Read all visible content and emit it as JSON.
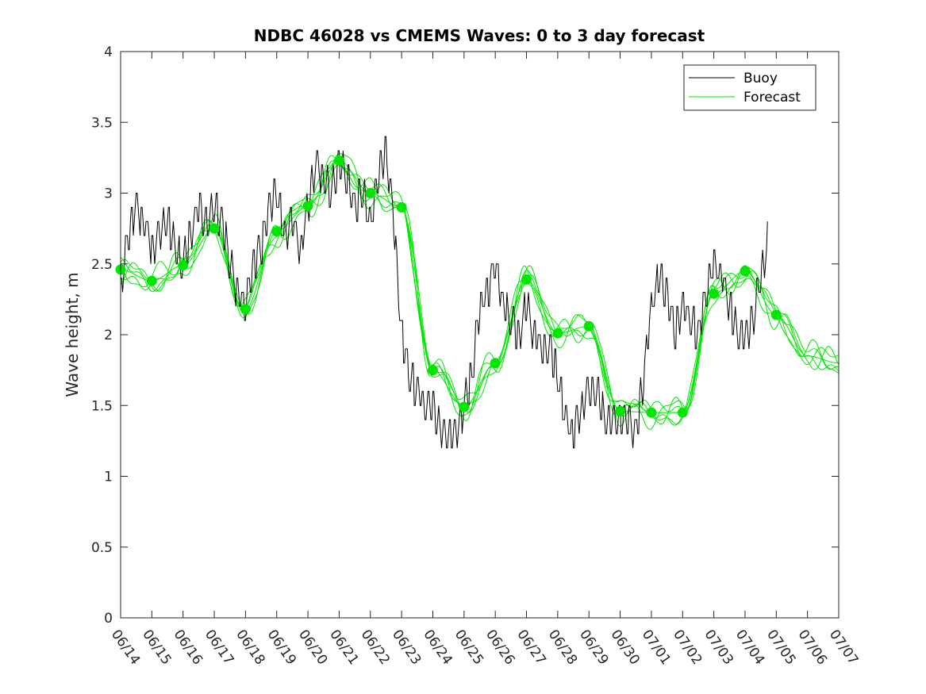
{
  "chart_data": {
    "type": "line",
    "title": "NDBC 46028 vs CMEMS Waves: 0 to 3 day forecast",
    "xlabel": "",
    "ylabel": "Wave height, m",
    "xlim": [
      0,
      23
    ],
    "ylim": [
      0,
      4
    ],
    "x_tick_labels": [
      "06/14",
      "06/15",
      "06/16",
      "06/17",
      "06/18",
      "06/19",
      "06/20",
      "06/21",
      "06/22",
      "06/23",
      "06/24",
      "06/25",
      "06/26",
      "06/27",
      "06/28",
      "06/29",
      "06/30",
      "07/01",
      "07/02",
      "07/03",
      "07/04",
      "07/05",
      "07/06",
      "07/07"
    ],
    "y_ticks": [
      0,
      0.5,
      1,
      1.5,
      2,
      2.5,
      3,
      3.5,
      4
    ],
    "y_tick_labels": [
      "0",
      "0.5",
      "1",
      "1.5",
      "2",
      "2.5",
      "3",
      "3.5",
      "4"
    ],
    "legend": {
      "placement": "top-right",
      "entries": [
        {
          "label": "Buoy",
          "color": "#000000"
        },
        {
          "label": "Forecast",
          "color": "#00e600"
        }
      ]
    },
    "grid": false,
    "series": [
      {
        "name": "Buoy",
        "color": "#000000",
        "x_days_from_0614": [
          0,
          0.25,
          0.5,
          0.75,
          1,
          1.25,
          1.5,
          1.75,
          2,
          2.25,
          2.5,
          2.75,
          3,
          3.25,
          3.5,
          3.75,
          4,
          4.25,
          4.5,
          4.75,
          5,
          5.25,
          5.5,
          5.75,
          6,
          6.25,
          6.5,
          6.75,
          7,
          7.25,
          7.5,
          7.75,
          8,
          8.25,
          8.5,
          8.75,
          9,
          9.25,
          9.5,
          9.75,
          10,
          10.25,
          10.5,
          10.75,
          11,
          11.25,
          11.5,
          11.75,
          12,
          12.25,
          12.5,
          12.75,
          13,
          13.25,
          13.5,
          13.75,
          14,
          14.25,
          14.5,
          14.75,
          15,
          15.25,
          15.5,
          15.75,
          16,
          16.25,
          16.5,
          16.75,
          17,
          17.25,
          17.5,
          17.75,
          18,
          18.25,
          18.5,
          18.75,
          19,
          19.25,
          19.5,
          19.75,
          20,
          20.25,
          20.5,
          20.75,
          21,
          21.25,
          21.5,
          21.75,
          22,
          22.25
        ],
        "values": [
          2.3,
          2.7,
          2.9,
          2.8,
          2.6,
          2.7,
          2.8,
          2.6,
          2.5,
          2.7,
          2.9,
          2.8,
          2.9,
          2.8,
          2.5,
          2.3,
          2.2,
          2.5,
          2.6,
          2.9,
          3.0,
          2.7,
          2.8,
          2.6,
          2.9,
          3.2,
          3.1,
          3.0,
          3.2,
          3.1,
          2.9,
          3.0,
          2.8,
          3.1,
          3.3,
          2.8,
          2.0,
          1.7,
          1.6,
          1.5,
          1.5,
          1.3,
          1.3,
          1.3,
          1.5,
          1.7,
          2.2,
          2.3,
          2.5,
          2.2,
          2.1,
          2.0,
          2.2,
          2.0,
          1.9,
          1.9,
          1.7,
          1.4,
          1.3,
          1.5,
          1.6,
          1.6,
          1.4,
          1.4,
          1.4,
          1.4,
          1.3,
          1.7,
          2.2,
          2.4,
          2.3,
          2.0,
          2.2,
          2.1,
          2.0,
          2.3,
          2.5,
          2.4,
          2.2,
          2.0,
          2.0,
          2.1,
          2.4,
          2.7
        ]
      },
      {
        "name": "Forecast",
        "color": "#00e600",
        "x_days_from_0614": [
          0,
          1,
          2,
          3,
          4,
          5,
          6,
          7,
          8,
          9,
          10,
          11,
          12,
          13,
          14,
          15,
          16,
          17,
          18,
          19,
          20,
          21,
          22,
          23
        ],
        "values": [
          2.46,
          2.38,
          2.49,
          2.75,
          2.18,
          2.73,
          2.91,
          3.23,
          3.0,
          2.9,
          1.75,
          1.49,
          1.8,
          2.39,
          2.01,
          2.06,
          1.46,
          1.45,
          1.45,
          2.29,
          2.45,
          2.14,
          1.85,
          1.8
        ]
      }
    ],
    "daily_markers": {
      "color": "#00e600",
      "x_days_from_0614": [
        0,
        1,
        2,
        3,
        4,
        5,
        6,
        7,
        8,
        9,
        10,
        11,
        12,
        13,
        14,
        15,
        16,
        17,
        18,
        19,
        20,
        21
      ],
      "values": [
        2.46,
        2.38,
        2.49,
        2.75,
        2.18,
        2.73,
        2.91,
        3.23,
        3.0,
        2.9,
        1.75,
        1.49,
        1.8,
        2.39,
        2.01,
        2.06,
        1.46,
        1.45,
        1.45,
        2.29,
        2.45,
        2.14
      ]
    }
  }
}
